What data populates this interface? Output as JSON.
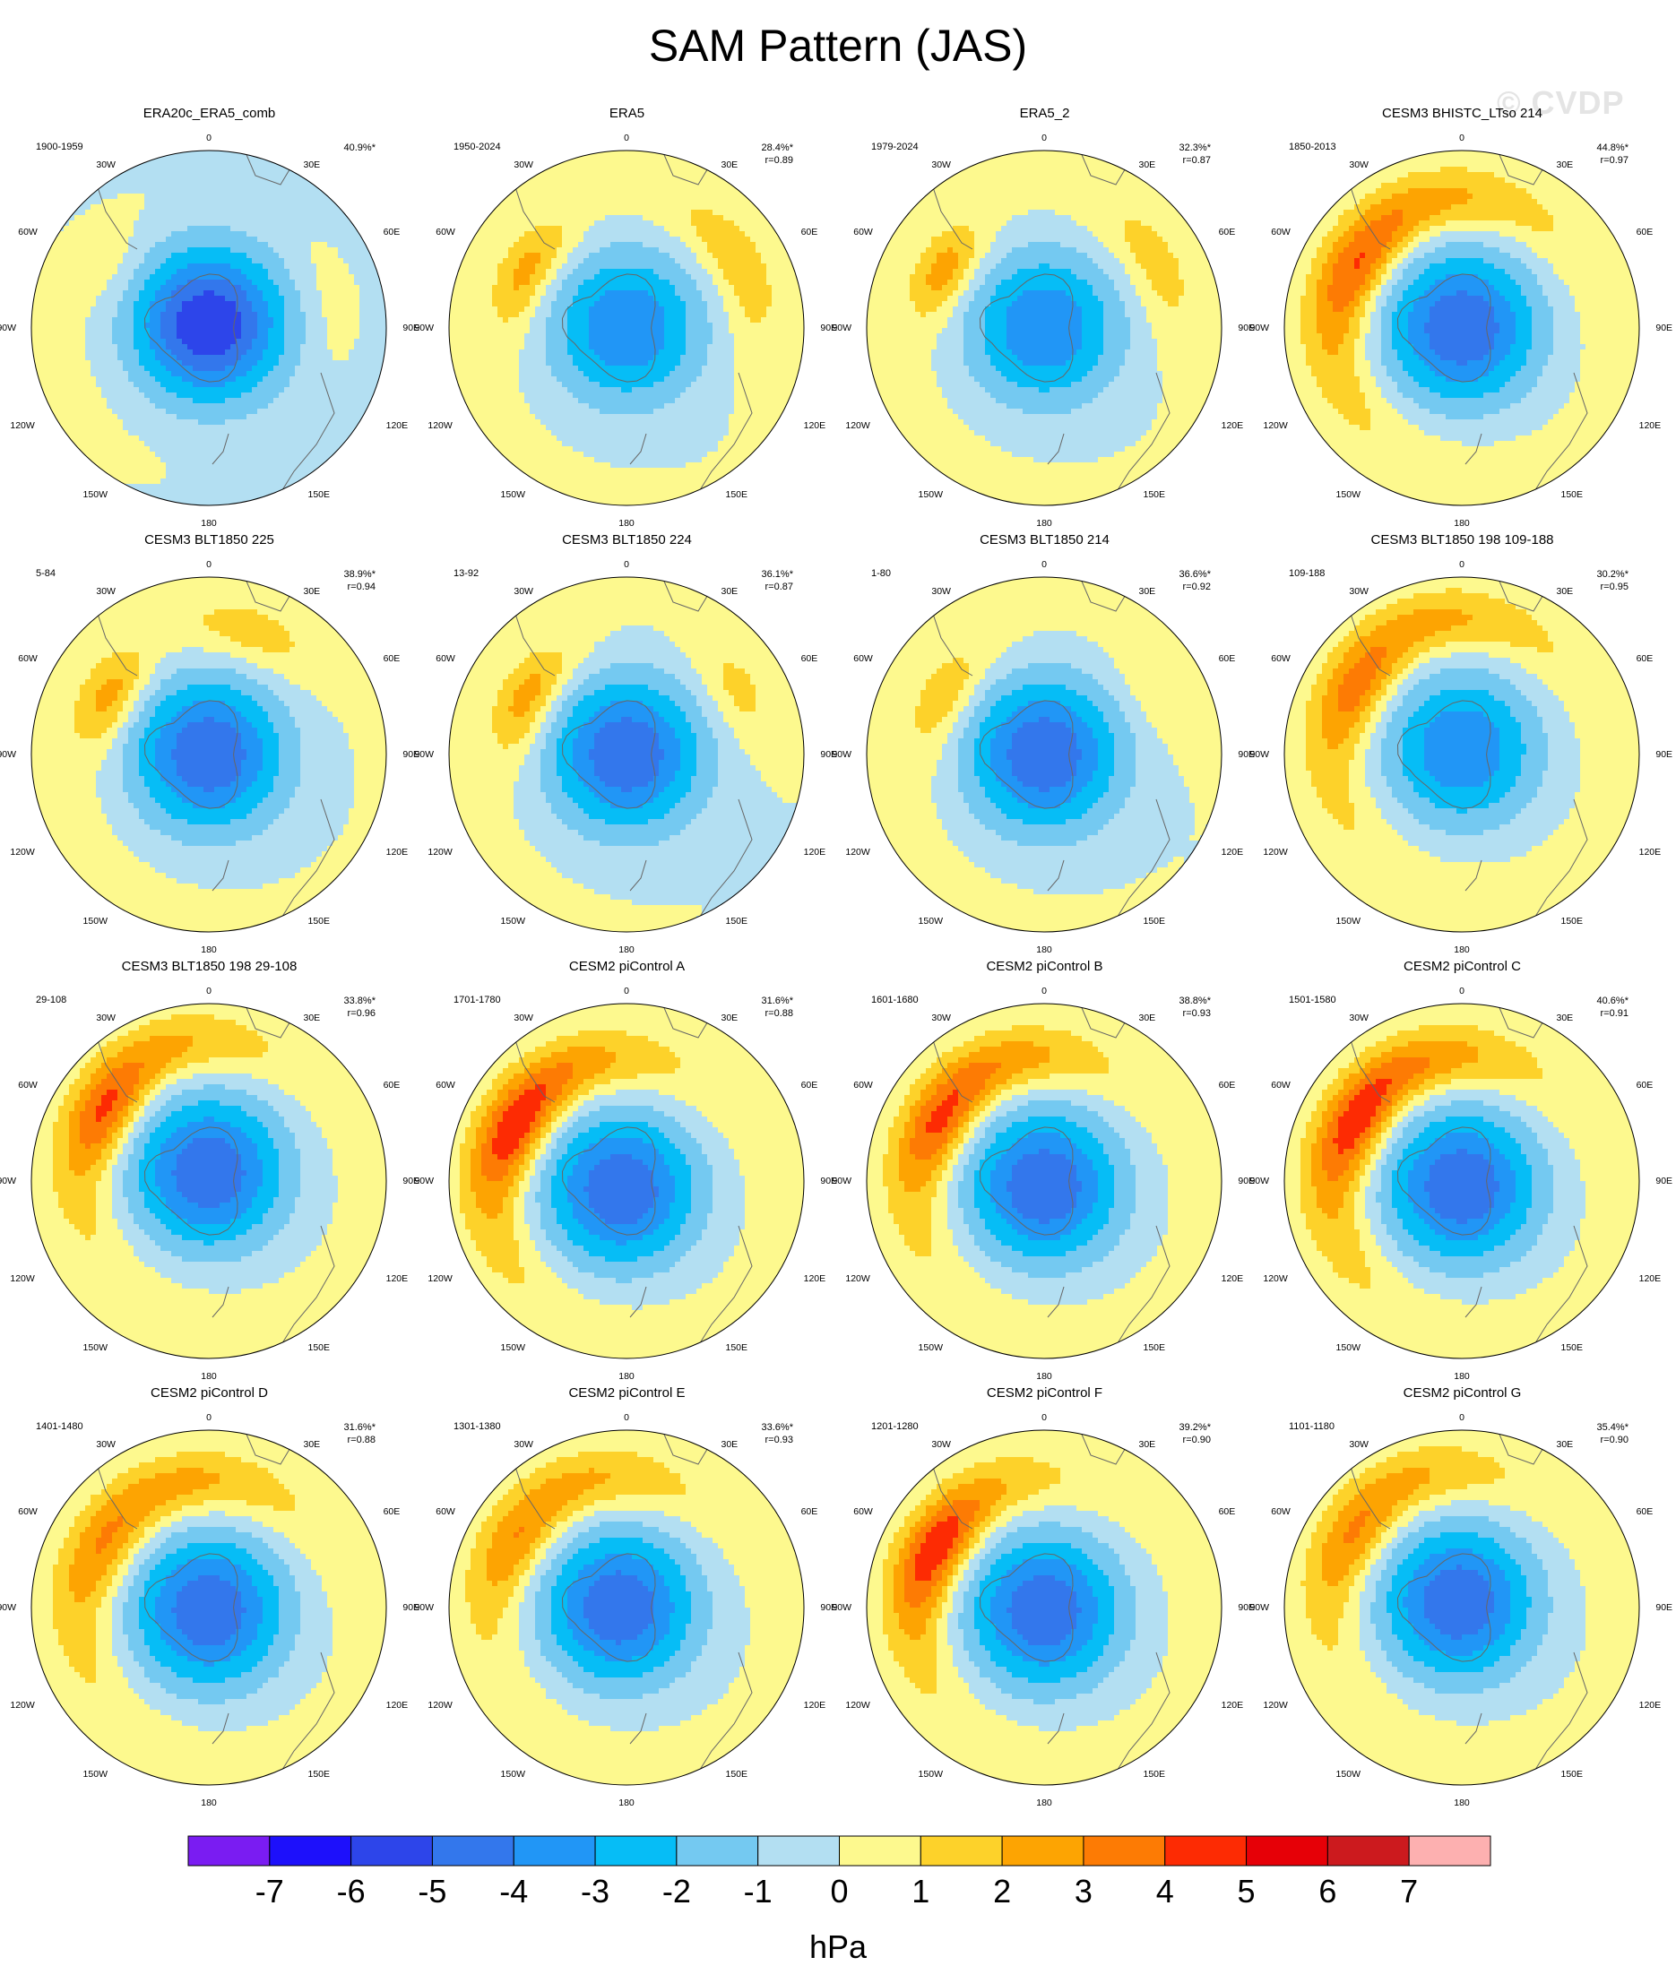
{
  "title": "SAM Pattern (JAS)",
  "watermark": "© CVDP",
  "units": "hPa",
  "colorbar": {
    "colors": [
      "#7a1cf2",
      "#1d10fb",
      "#2d45ea",
      "#3377ec",
      "#2196f6",
      "#06bdf6",
      "#74c9f1",
      "#b3dff2",
      "#fdf98e",
      "#fdd22a",
      "#fda402",
      "#fd7b04",
      "#fd2b03",
      "#e60007",
      "#cc1a1e",
      "#fdb0b0"
    ],
    "ticks": [
      "-7",
      "-6",
      "-5",
      "-4",
      "-3",
      "-2",
      "-1",
      "0",
      "1",
      "2",
      "3",
      "4",
      "5",
      "6",
      "7"
    ]
  },
  "map_labels": {
    "top": "0",
    "bottom": "180",
    "left": "90W",
    "right": "90E",
    "w30": "30W",
    "e30": "30E",
    "w60": "60W",
    "e60": "60E",
    "w120": "120W",
    "e120": "120E",
    "w150": "150W",
    "e150": "150E"
  },
  "chart_data": [
    {
      "type": "heatmap",
      "title": "ERA20c_ERA5_comb",
      "period": "1900-1959",
      "pct": "40.9%*",
      "r": "",
      "min": -6,
      "pac_amp": 0.8,
      "pac_ang": 80,
      "pac_len": 35,
      "ind_amp": 0.6,
      "ind_ang": 300,
      "ind_len": 20,
      "ring_amp": 0.4,
      "off": [
        0,
        0.02
      ],
      "blue_out": true
    },
    {
      "type": "heatmap",
      "title": "ERA5",
      "period": "1950-2024",
      "pct": "28.4%*",
      "r": "r=0.89",
      "min": -4,
      "pac_amp": 1.8,
      "pac_ang": 60,
      "pac_len": 40,
      "ind_amp": 2.4,
      "ind_ang": 300,
      "ind_len": 30,
      "ring_amp": 0.3,
      "off": [
        0,
        0
      ],
      "blue_out": false
    },
    {
      "type": "heatmap",
      "title": "ERA5_2",
      "period": "1979-2024",
      "pct": "32.3%*",
      "r": "r=0.87",
      "min": -4,
      "pac_amp": 1.5,
      "pac_ang": 60,
      "pac_len": 35,
      "ind_amp": 2.5,
      "ind_ang": 300,
      "ind_len": 25,
      "ring_amp": 0.4,
      "off": [
        0,
        0
      ],
      "blue_out": false
    },
    {
      "type": "heatmap",
      "title": "CESM3 BHISTC_LTso 214",
      "period": "1850-2013",
      "pct": "44.8%*",
      "r": "r=0.97",
      "min": -5,
      "pac_amp": 1.8,
      "pac_ang": 320,
      "pac_len": 80,
      "ind_amp": 1.8,
      "ind_ang": 300,
      "ind_len": 30,
      "ring_amp": 1.2,
      "off": [
        0,
        0
      ],
      "blue_out": false
    },
    {
      "type": "heatmap",
      "title": "CESM3 BLT1850 225",
      "period": "5-84",
      "pct": "38.9%*",
      "r": "r=0.94",
      "min": -5,
      "pac_amp": 1.4,
      "pac_ang": 20,
      "pac_len": 30,
      "ind_amp": 2.4,
      "ind_ang": 300,
      "ind_len": 25,
      "ring_amp": 0.5,
      "off": [
        0,
        0
      ],
      "blue_out": false
    },
    {
      "type": "heatmap",
      "title": "CESM3 BLT1850 224",
      "period": "13-92",
      "pct": "36.1%*",
      "r": "r=0.87",
      "min": -5,
      "pac_amp": 1.4,
      "pac_ang": 60,
      "pac_len": 25,
      "ind_amp": 2.6,
      "ind_ang": 300,
      "ind_len": 30,
      "ring_amp": 0.3,
      "off": [
        0,
        0
      ],
      "blue_out": false
    },
    {
      "type": "heatmap",
      "title": "CESM3 BLT1850 214",
      "period": "1-80",
      "pct": "36.6%*",
      "r": "r=0.92",
      "min": -5,
      "pac_amp": 0.8,
      "pac_ang": 60,
      "pac_len": 25,
      "ind_amp": 1.7,
      "ind_ang": 300,
      "ind_len": 30,
      "ring_amp": 0.4,
      "off": [
        0,
        0
      ],
      "blue_out": false
    },
    {
      "type": "heatmap",
      "title": "CESM3 BLT1850 198 109-188",
      "period": "109-188",
      "pct": "30.2%*",
      "r": "r=0.95",
      "min": -4,
      "pac_amp": 1.6,
      "pac_ang": 330,
      "pac_len": 70,
      "ind_amp": 1.6,
      "ind_ang": 300,
      "ind_len": 25,
      "ring_amp": 1.2,
      "off": [
        0,
        0.03
      ],
      "blue_out": false
    },
    {
      "type": "heatmap",
      "title": "CESM3 BLT1850 198 29-108",
      "period": "29-108",
      "pct": "33.8%*",
      "r": "r=0.96",
      "min": -5,
      "pac_amp": 1.8,
      "pac_ang": 320,
      "pac_len": 60,
      "ind_amp": 2.2,
      "ind_ang": 300,
      "ind_len": 25,
      "ring_amp": 1.1,
      "off": [
        0,
        0.05
      ],
      "blue_out": false
    },
    {
      "type": "heatmap",
      "title": "CESM2 piControl A",
      "period": "1701-1780",
      "pct": "31.6%*",
      "r": "r=0.88",
      "min": -5,
      "pac_amp": 2.6,
      "pac_ang": 310,
      "pac_len": 55,
      "ind_amp": 1.8,
      "ind_ang": 300,
      "ind_len": 25,
      "ring_amp": 1.3,
      "off": [
        0.03,
        -0.05
      ],
      "blue_out": false
    },
    {
      "type": "heatmap",
      "title": "CESM2 piControl B",
      "period": "1601-1680",
      "pct": "38.8%*",
      "r": "r=0.93",
      "min": -5,
      "pac_amp": 2.4,
      "pac_ang": 320,
      "pac_len": 55,
      "ind_amp": 1.6,
      "ind_ang": 300,
      "ind_len": 25,
      "ring_amp": 1.2,
      "off": [
        0,
        -0.03
      ],
      "blue_out": false
    },
    {
      "type": "heatmap",
      "title": "CESM2 piControl C",
      "period": "1501-1580",
      "pct": "40.6%*",
      "r": "r=0.91",
      "min": -5,
      "pac_amp": 2.6,
      "pac_ang": 315,
      "pac_len": 60,
      "ind_amp": 1.6,
      "ind_ang": 300,
      "ind_len": 25,
      "ring_amp": 1.4,
      "off": [
        0,
        -0.03
      ],
      "blue_out": false
    },
    {
      "type": "heatmap",
      "title": "CESM2 piControl D",
      "period": "1401-1480",
      "pct": "31.6%*",
      "r": "r=0.88",
      "min": -5,
      "pac_amp": 1.8,
      "pac_ang": 330,
      "pac_len": 70,
      "ind_amp": 1.0,
      "ind_ang": 300,
      "ind_len": 25,
      "ring_amp": 1.1,
      "off": [
        0,
        -0.02
      ],
      "blue_out": false
    },
    {
      "type": "heatmap",
      "title": "CESM2 piControl E",
      "period": "1301-1380",
      "pct": "33.6%*",
      "r": "r=0.93",
      "min": -5,
      "pac_amp": 1.8,
      "pac_ang": 330,
      "pac_len": 60,
      "ind_amp": 1.2,
      "ind_ang": 300,
      "ind_len": 25,
      "ring_amp": 0.9,
      "off": [
        0.04,
        0
      ],
      "blue_out": false
    },
    {
      "type": "heatmap",
      "title": "CESM2 piControl F",
      "period": "1201-1280",
      "pct": "39.2%*",
      "r": "r=0.90",
      "min": -5,
      "pac_amp": 2.8,
      "pac_ang": 300,
      "pac_len": 45,
      "ind_amp": 1.4,
      "ind_ang": 300,
      "ind_len": 25,
      "ring_amp": 1.2,
      "off": [
        0,
        -0.02
      ],
      "blue_out": false
    },
    {
      "type": "heatmap",
      "title": "CESM2 piControl G",
      "period": "1101-1180",
      "pct": "35.4%*",
      "r": "r=0.90",
      "min": -5,
      "pac_amp": 1.8,
      "pac_ang": 320,
      "pac_len": 55,
      "ind_amp": 1.0,
      "ind_ang": 300,
      "ind_len": 25,
      "ring_amp": 1.0,
      "off": [
        0.02,
        0.03
      ],
      "blue_out": false
    }
  ]
}
